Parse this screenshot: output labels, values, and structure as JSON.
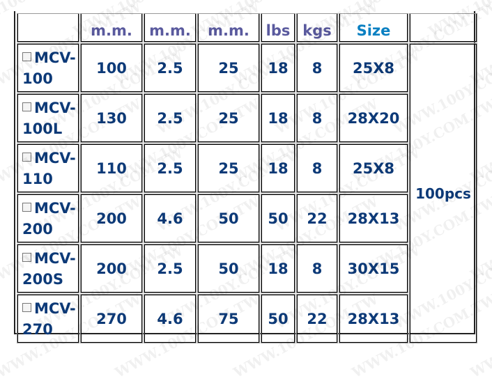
{
  "watermark": "WWW.100Y.COM.TW",
  "header": [
    "",
    "m.m.",
    "m.m.",
    "m.m.",
    "lbs",
    "kgs",
    "Size",
    ""
  ],
  "rows": [
    {
      "model": "MCV-100",
      "c1": "100",
      "c2": "2.5",
      "c3": "25",
      "c4": "18",
      "c5": "8",
      "size": "25X8"
    },
    {
      "model": "MCV-100L",
      "c1": "130",
      "c2": "2.5",
      "c3": "25",
      "c4": "18",
      "c5": "8",
      "size": "28X20"
    },
    {
      "model": "MCV-110",
      "c1": "110",
      "c2": "2.5",
      "c3": "25",
      "c4": "18",
      "c5": "8",
      "size": "25X8"
    },
    {
      "model": "MCV-200",
      "c1": "200",
      "c2": "4.6",
      "c3": "50",
      "c4": "50",
      "c5": "22",
      "size": "28X13"
    },
    {
      "model": "MCV-200S",
      "c1": "200",
      "c2": "2.5",
      "c3": "50",
      "c4": "18",
      "c5": "8",
      "size": "30X15"
    },
    {
      "model": "MCV-270",
      "c1": "270",
      "c2": "4.6",
      "c3": "75",
      "c4": "50",
      "c5": "22",
      "size": "28X13"
    }
  ],
  "packing": "100pcs",
  "colors": {
    "header": "#5a5a9e",
    "size_header": "#0b80c2",
    "data": "#0d3a78"
  }
}
